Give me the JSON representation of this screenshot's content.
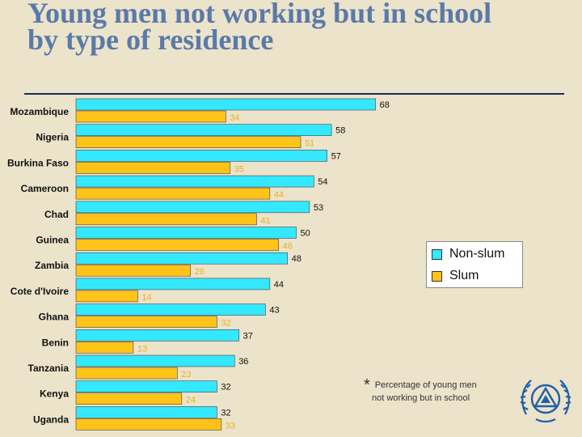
{
  "title_line1": "Young men not working but in school",
  "title_line2": "by type of residence",
  "legend": {
    "nonslum": "Non-slum",
    "slum": "Slum"
  },
  "footnote": {
    "star": "*",
    "line1": "Percentage of young men",
    "line2": "not working but in school"
  },
  "colors": {
    "nonslum": "#33e8ff",
    "slum": "#ffc31a",
    "label_slum": "#e8b41a"
  },
  "chart_data": {
    "type": "bar",
    "orientation": "horizontal",
    "categories": [
      "Mozambique",
      "Nigeria",
      "Burkina Faso",
      "Cameroon",
      "Chad",
      "Guinea",
      "Zambia",
      "Cote d'Ivoire",
      "Ghana",
      "Benin",
      "Tanzania",
      "Kenya",
      "Uganda"
    ],
    "series": [
      {
        "name": "Non-slum",
        "values": [
          68,
          58,
          57,
          54,
          53,
          50,
          48,
          44,
          43,
          37,
          36,
          32,
          32
        ]
      },
      {
        "name": "Slum",
        "values": [
          34,
          51,
          35,
          44,
          41,
          46,
          26,
          14,
          32,
          13,
          23,
          24,
          33
        ]
      }
    ],
    "legend_position": "right",
    "grid": false,
    "xlim": [
      0,
      70
    ]
  }
}
